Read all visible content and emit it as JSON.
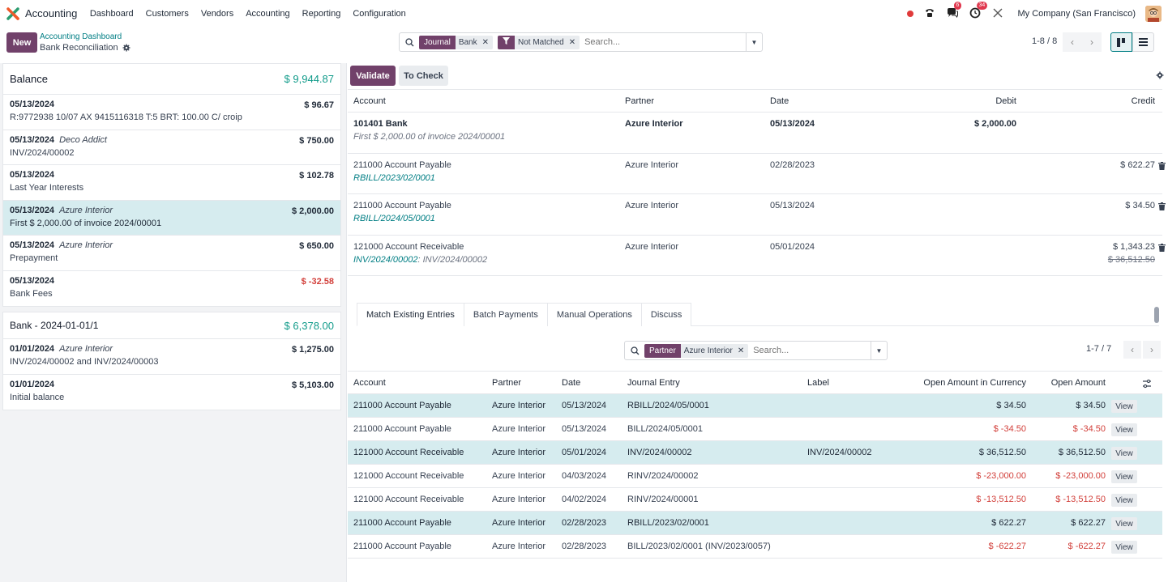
{
  "nav": {
    "app_name": "Accounting",
    "menu": [
      "Dashboard",
      "Customers",
      "Vendors",
      "Accounting",
      "Reporting",
      "Configuration"
    ],
    "messages_badge": "6",
    "activities_badge": "34",
    "company": "My Company (San Francisco)"
  },
  "control": {
    "new_label": "New",
    "breadcrumb_parent": "Accounting Dashboard",
    "breadcrumb_current": "Bank Reconciliation",
    "facets": [
      {
        "label": "Journal",
        "value": "Bank"
      },
      {
        "label": "",
        "value": "Not Matched"
      }
    ],
    "search_placeholder": "Search...",
    "pager": "1-8 / 8"
  },
  "left": {
    "balance_label": "Balance",
    "balance_value": "$ 9,944.87",
    "lines": [
      {
        "date": "05/13/2024",
        "partner": "",
        "label": "R:9772938 10/07 AX 9415116318 T:5 BRT: 100.00 C/ croip",
        "amount": "$ 96.67"
      },
      {
        "date": "05/13/2024",
        "partner": "Deco Addict",
        "label": "INV/2024/00002",
        "amount": "$ 750.00"
      },
      {
        "date": "05/13/2024",
        "partner": "",
        "label": "Last Year Interests",
        "amount": "$ 102.78"
      },
      {
        "date": "05/13/2024",
        "partner": "Azure Interior",
        "label": "First $ 2,000.00 of invoice 2024/00001",
        "amount": "$ 2,000.00"
      },
      {
        "date": "05/13/2024",
        "partner": "Azure Interior",
        "label": "Prepayment",
        "amount": "$ 650.00"
      },
      {
        "date": "05/13/2024",
        "partner": "",
        "label": "Bank Fees",
        "amount": "$ -32.58"
      }
    ],
    "statement_label": "Bank - 2024-01-01/1",
    "statement_value": "$ 6,378.00",
    "statement_lines": [
      {
        "date": "01/01/2024",
        "partner": "Azure Interior",
        "label": "INV/2024/00002 and INV/2024/00003",
        "amount": "$ 1,275.00"
      },
      {
        "date": "01/01/2024",
        "partner": "",
        "label": "Initial balance",
        "amount": "$ 5,103.00"
      }
    ]
  },
  "right": {
    "validate_label": "Validate",
    "to_check_label": "To Check",
    "headers": {
      "account": "Account",
      "partner": "Partner",
      "date": "Date",
      "debit": "Debit",
      "credit": "Credit"
    },
    "lines": [
      {
        "account": "101401 Bank",
        "sub": "First $ 2,000.00 of invoice 2024/00001",
        "partner": "Azure Interior",
        "date": "05/13/2024",
        "debit": "$ 2,000.00",
        "credit": "",
        "credit_old": ""
      },
      {
        "account": "211000 Account Payable",
        "sub": "RBILL/2023/02/0001",
        "partner": "Azure Interior",
        "date": "02/28/2023",
        "debit": "",
        "credit": "$ 622.27",
        "credit_old": ""
      },
      {
        "account": "211000 Account Payable",
        "sub": "RBILL/2024/05/0001",
        "partner": "Azure Interior",
        "date": "05/13/2024",
        "debit": "",
        "credit": "$ 34.50",
        "credit_old": ""
      },
      {
        "account": "121000 Account Receivable",
        "sub_link": "INV/2024/00002",
        "sub_rest": ": INV/2024/00002",
        "partner": "Azure Interior",
        "date": "05/01/2024",
        "debit": "",
        "credit": "$ 1,343.23",
        "credit_old": "$ 36,512.50"
      }
    ],
    "tabs": [
      "Match Existing Entries",
      "Batch Payments",
      "Manual Operations",
      "Discuss"
    ],
    "match_search": {
      "facet_label": "Partner",
      "facet_value": "Azure Interior",
      "placeholder": "Search..."
    },
    "match_pager": "1-7 / 7",
    "match_headers": {
      "account": "Account",
      "partner": "Partner",
      "date": "Date",
      "journal_entry": "Journal Entry",
      "label": "Label",
      "open_currency": "Open Amount in Currency",
      "open_amount": "Open Amount"
    },
    "view_label": "View",
    "match_rows": [
      {
        "account": "211000 Account Payable",
        "partner": "Azure Interior",
        "date": "05/13/2024",
        "je": "RBILL/2024/05/0001",
        "label": "",
        "oac": "$ 34.50",
        "oa": "$ 34.50"
      },
      {
        "account": "211000 Account Payable",
        "partner": "Azure Interior",
        "date": "05/13/2024",
        "je": "BILL/2024/05/0001",
        "label": "",
        "oac": "$ -34.50",
        "oa": "$ -34.50"
      },
      {
        "account": "121000 Account Receivable",
        "partner": "Azure Interior",
        "date": "05/01/2024",
        "je": "INV/2024/00002",
        "label": "INV/2024/00002",
        "oac": "$ 36,512.50",
        "oa": "$ 36,512.50"
      },
      {
        "account": "121000 Account Receivable",
        "partner": "Azure Interior",
        "date": "04/03/2024",
        "je": "RINV/2024/00002",
        "label": "",
        "oac": "$ -23,000.00",
        "oa": "$ -23,000.00"
      },
      {
        "account": "121000 Account Receivable",
        "partner": "Azure Interior",
        "date": "04/02/2024",
        "je": "RINV/2024/00001",
        "label": "",
        "oac": "$ -13,512.50",
        "oa": "$ -13,512.50"
      },
      {
        "account": "211000 Account Payable",
        "partner": "Azure Interior",
        "date": "02/28/2023",
        "je": "RBILL/2023/02/0001",
        "label": "",
        "oac": "$ 622.27",
        "oa": "$ 622.27"
      },
      {
        "account": "211000 Account Payable",
        "partner": "Azure Interior",
        "date": "02/28/2023",
        "je": "BILL/2023/02/0001 (INV/2023/0057)",
        "label": "",
        "oac": "$ -622.27",
        "oa": "$ -622.27"
      }
    ]
  },
  "colors": {
    "brand": "#71416a",
    "teal": "#017e84",
    "positive": "#119b8a",
    "negative": "#d23f3a",
    "selected_row": "#d6ecef"
  },
  "icons": [
    "app-logo-icon",
    "status-dot-icon",
    "phone-icon",
    "chat-icon",
    "clock-icon",
    "tools-icon",
    "gear-icon",
    "search-icon",
    "filter-icon",
    "close-icon",
    "caret-down-icon",
    "chevron-left-icon",
    "chevron-right-icon",
    "kanban-icon",
    "list-icon",
    "trash-icon",
    "adjust-columns-icon"
  ]
}
